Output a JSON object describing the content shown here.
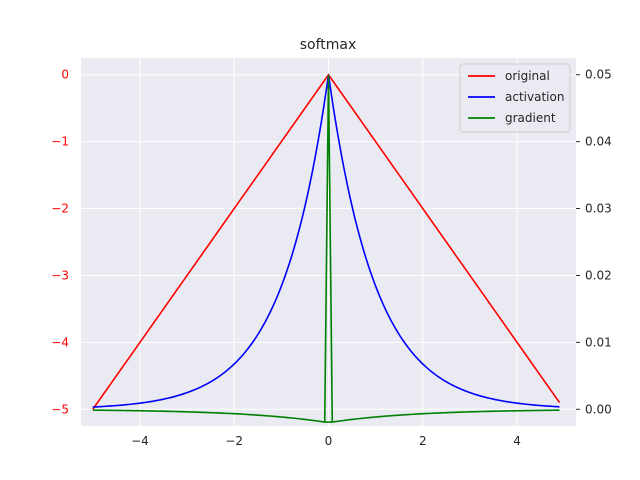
{
  "chart_data": {
    "type": "line",
    "title": "softmax",
    "xlim": [
      -5.25,
      5.25
    ],
    "x_ticks": [
      -4,
      -2,
      0,
      2,
      4
    ],
    "x_tick_labels": [
      "−4",
      "−2",
      "0",
      "2",
      "4"
    ],
    "left_axis": {
      "ylim": [
        -5.25,
        0.25
      ],
      "ticks": [
        0,
        -1,
        -2,
        -3,
        -4,
        -5
      ],
      "tick_labels": [
        "0",
        "−1",
        "−2",
        "−3",
        "−4",
        "−5"
      ],
      "tick_color": "#ff0000"
    },
    "right_axis": {
      "ylim": [
        -0.0025,
        0.0525
      ],
      "ticks": [
        0.0,
        0.01,
        0.02,
        0.03,
        0.04,
        0.05
      ],
      "tick_labels": [
        "0.00",
        "0.01",
        "0.02",
        "0.03",
        "0.04",
        "0.05"
      ],
      "tick_color": "#262626"
    },
    "grid": true,
    "background": "#eaeaf2",
    "legend_position": "top-right",
    "series": [
      {
        "name": "original",
        "color": "#ff0000",
        "axis": "left",
        "function": "-abs(x)",
        "x_range": [
          -5,
          4.9
        ]
      },
      {
        "name": "activation",
        "color": "#0000ff",
        "axis": "right",
        "function": "0.05*exp(-abs(x))",
        "x_range": [
          -5,
          4.9
        ]
      },
      {
        "name": "gradient",
        "color": "#008000",
        "axis": "right",
        "function": "0.05*exp(-abs(x))*(1-0.05*exp(-abs(x)))-spike",
        "x_range": [
          -5,
          4.9
        ]
      }
    ]
  }
}
